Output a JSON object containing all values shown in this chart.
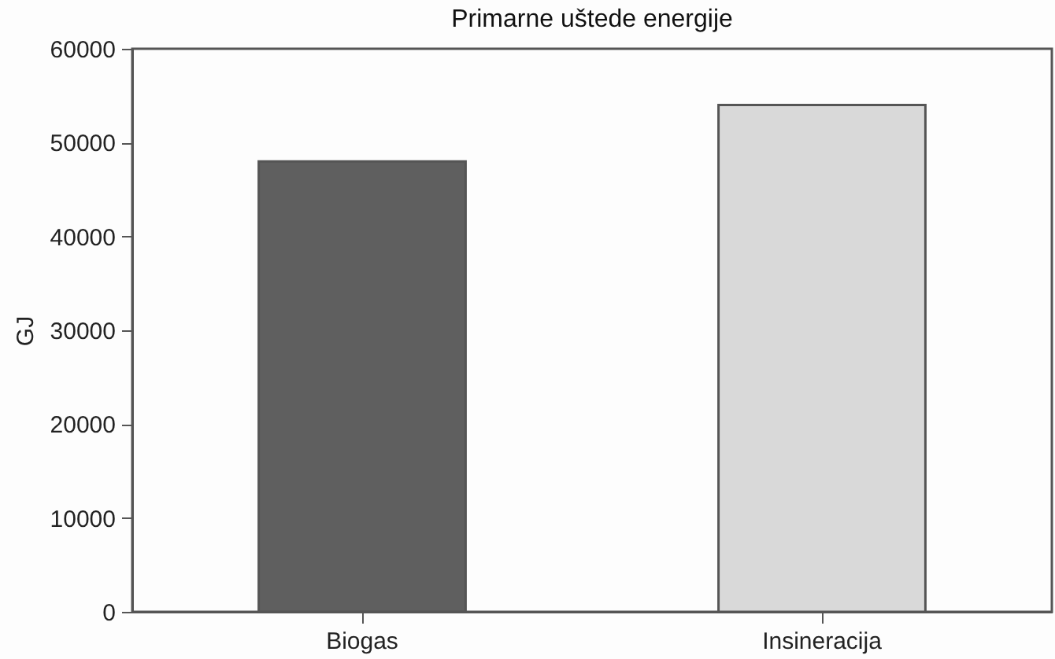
{
  "chart_data": {
    "type": "bar",
    "title": "Primarne uštede energije",
    "ylabel": "GJ",
    "categories": [
      "Biogas",
      "Insineracija"
    ],
    "values": [
      48000,
      54000
    ],
    "colors": [
      "#5f5f5f",
      "#d9d9d9"
    ],
    "ylim": [
      0,
      60000
    ],
    "yticks": [
      0,
      10000,
      20000,
      30000,
      40000,
      50000,
      60000
    ],
    "grid": false
  }
}
